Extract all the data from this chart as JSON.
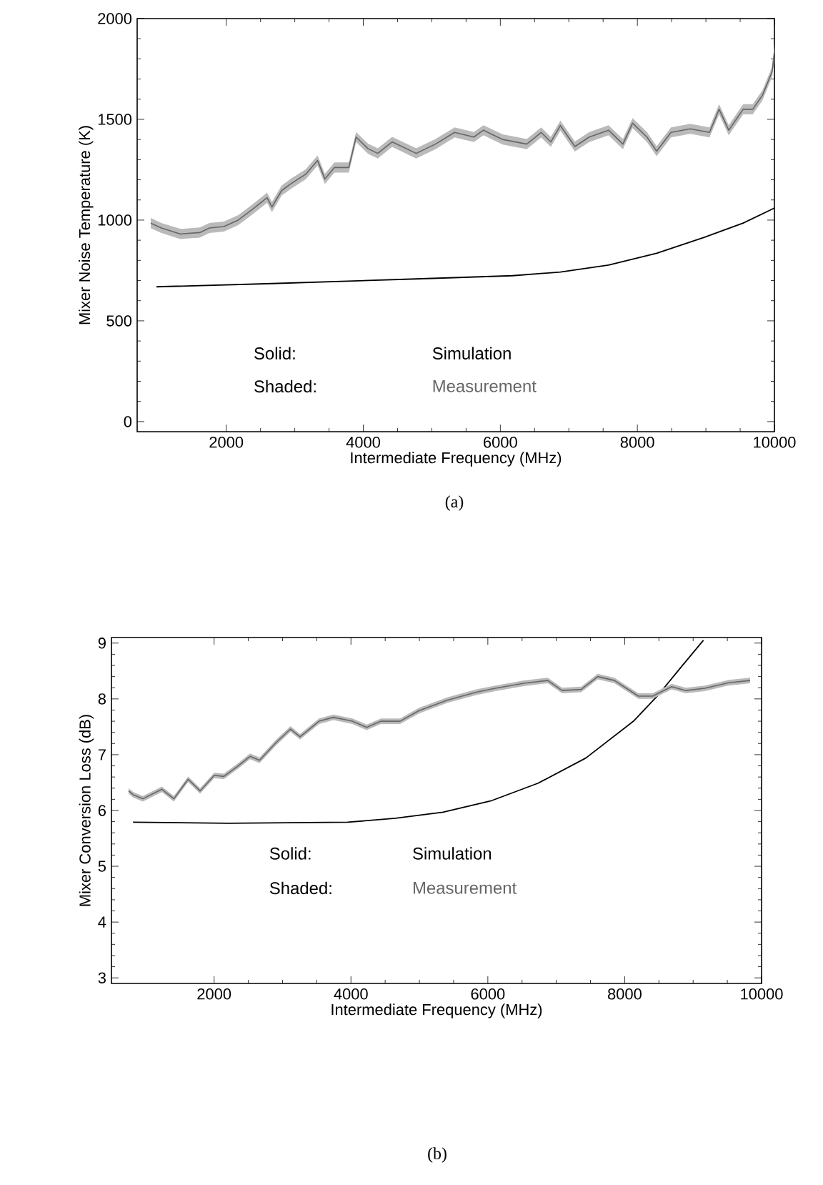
{
  "chart_data": [
    {
      "type": "line",
      "xlabel": "Intermediate Frequency (MHz)",
      "ylabel": "Mixer Noise Temperature (K)",
      "xlim": [
        700,
        10000
      ],
      "ylim": [
        -50,
        2000
      ],
      "xticks": [
        2000,
        4000,
        6000,
        8000,
        10000
      ],
      "yticks": [
        0,
        500,
        1000,
        1500,
        2000
      ],
      "legend": "bottom",
      "annotations": [
        "Solid:",
        "Shaded:",
        "(a)"
      ],
      "series": [
        {
          "name": "Simulation",
          "color": "#000000",
          "x": [
            982,
            2667,
            4772,
            6176,
            6877,
            7579,
            8281,
            8982,
            9544,
            9965,
            10000
          ],
          "values": [
            669,
            685,
            708,
            724,
            742,
            777,
            835,
            915,
            985,
            1054,
            1060
          ]
        },
        {
          "name": "Measurement",
          "color": "#666666",
          "x": [
            898,
            1053,
            1333,
            1614,
            1754,
            1965,
            2175,
            2386,
            2596,
            2667,
            2807,
            2947,
            3158,
            3333,
            3439,
            3579,
            3789,
            3895,
            4070,
            4211,
            4421,
            4772,
            5053,
            5333,
            5614,
            5754,
            6035,
            6386,
            6596,
            6737,
            6877,
            7088,
            7298,
            7579,
            7789,
            7930,
            8140,
            8281,
            8491,
            8772,
            9053,
            9193,
            9333,
            9544,
            9684,
            9825,
            9965,
            10000
          ],
          "values": [
            985,
            961,
            931,
            938,
            961,
            968,
            1000,
            1054,
            1111,
            1065,
            1146,
            1181,
            1227,
            1296,
            1204,
            1261,
            1261,
            1412,
            1354,
            1331,
            1388,
            1331,
            1377,
            1435,
            1412,
            1446,
            1400,
            1377,
            1435,
            1388,
            1469,
            1365,
            1412,
            1446,
            1377,
            1481,
            1412,
            1342,
            1435,
            1453,
            1435,
            1550,
            1446,
            1550,
            1550,
            1619,
            1735,
            1830
          ],
          "lower": [
            960,
            936,
            906,
            913,
            936,
            943,
            975,
            1029,
            1086,
            1040,
            1121,
            1156,
            1202,
            1271,
            1179,
            1236,
            1236,
            1387,
            1329,
            1306,
            1363,
            1306,
            1352,
            1410,
            1387,
            1421,
            1375,
            1352,
            1410,
            1363,
            1444,
            1340,
            1387,
            1421,
            1352,
            1456,
            1387,
            1317,
            1410,
            1428,
            1410,
            1525,
            1421,
            1525,
            1525,
            1594,
            1710,
            1790
          ],
          "upper": [
            1010,
            986,
            956,
            963,
            986,
            993,
            1025,
            1079,
            1136,
            1090,
            1171,
            1206,
            1252,
            1321,
            1229,
            1286,
            1286,
            1437,
            1379,
            1356,
            1413,
            1356,
            1402,
            1460,
            1437,
            1471,
            1425,
            1402,
            1460,
            1413,
            1494,
            1390,
            1437,
            1471,
            1402,
            1506,
            1437,
            1367,
            1460,
            1478,
            1460,
            1575,
            1471,
            1575,
            1575,
            1644,
            1760,
            1870
          ]
        }
      ]
    },
    {
      "type": "line",
      "xlabel": "Intermediate Frequency (MHz)",
      "ylabel": "Mixer Conversion Loss (dB)",
      "xlim": [
        500,
        10000
      ],
      "ylim": [
        2.9,
        9.1
      ],
      "xticks": [
        2000,
        4000,
        6000,
        8000,
        10000
      ],
      "yticks": [
        3,
        4,
        5,
        6,
        7,
        8,
        9
      ],
      "legend": "left",
      "annotations": [
        "Solid:",
        "Shaded:",
        "(b)"
      ],
      "series": [
        {
          "name": "Simulation",
          "color": "#000000",
          "x": [
            815,
            2212,
            3952,
            4649,
            5345,
            6040,
            6736,
            7432,
            8128,
            8476,
            8824,
            9150
          ],
          "values": [
            5.79,
            5.77,
            5.79,
            5.86,
            5.97,
            6.17,
            6.49,
            6.94,
            7.6,
            8.05,
            8.57,
            9.05
          ]
        },
        {
          "name": "Measurement",
          "color": "#666666",
          "x": [
            751,
            820,
            959,
            1237,
            1412,
            1621,
            1795,
            2003,
            2142,
            2351,
            2525,
            2664,
            2908,
            3116,
            3256,
            3534,
            3743,
            4021,
            4230,
            4438,
            4718,
            4996,
            5413,
            5831,
            6110,
            6528,
            6876,
            7085,
            7364,
            7606,
            7850,
            8199,
            8408,
            8685,
            8894,
            9172,
            9520,
            9833
          ],
          "values": [
            6.35,
            6.28,
            6.21,
            6.38,
            6.21,
            6.56,
            6.35,
            6.63,
            6.61,
            6.8,
            6.97,
            6.9,
            7.22,
            7.46,
            7.32,
            7.6,
            7.67,
            7.6,
            7.49,
            7.6,
            7.6,
            7.79,
            7.98,
            8.12,
            8.19,
            8.28,
            8.33,
            8.15,
            8.17,
            8.4,
            8.33,
            8.05,
            8.05,
            8.22,
            8.15,
            8.19,
            8.29,
            8.33
          ],
          "lower": [
            6.3,
            6.23,
            6.16,
            6.33,
            6.16,
            6.51,
            6.3,
            6.58,
            6.56,
            6.75,
            6.92,
            6.85,
            7.17,
            7.41,
            7.27,
            7.55,
            7.62,
            7.55,
            7.44,
            7.55,
            7.55,
            7.74,
            7.93,
            8.07,
            8.14,
            8.23,
            8.28,
            8.1,
            8.12,
            8.35,
            8.28,
            8.0,
            8.0,
            8.17,
            8.1,
            8.14,
            8.24,
            8.28
          ],
          "upper": [
            6.4,
            6.33,
            6.26,
            6.43,
            6.26,
            6.61,
            6.4,
            6.68,
            6.66,
            6.85,
            7.02,
            6.95,
            7.27,
            7.51,
            7.37,
            7.65,
            7.72,
            7.65,
            7.54,
            7.65,
            7.65,
            7.84,
            8.03,
            8.17,
            8.24,
            8.33,
            8.38,
            8.2,
            8.22,
            8.45,
            8.38,
            8.1,
            8.1,
            8.27,
            8.2,
            8.24,
            8.34,
            8.38
          ]
        }
      ]
    }
  ]
}
